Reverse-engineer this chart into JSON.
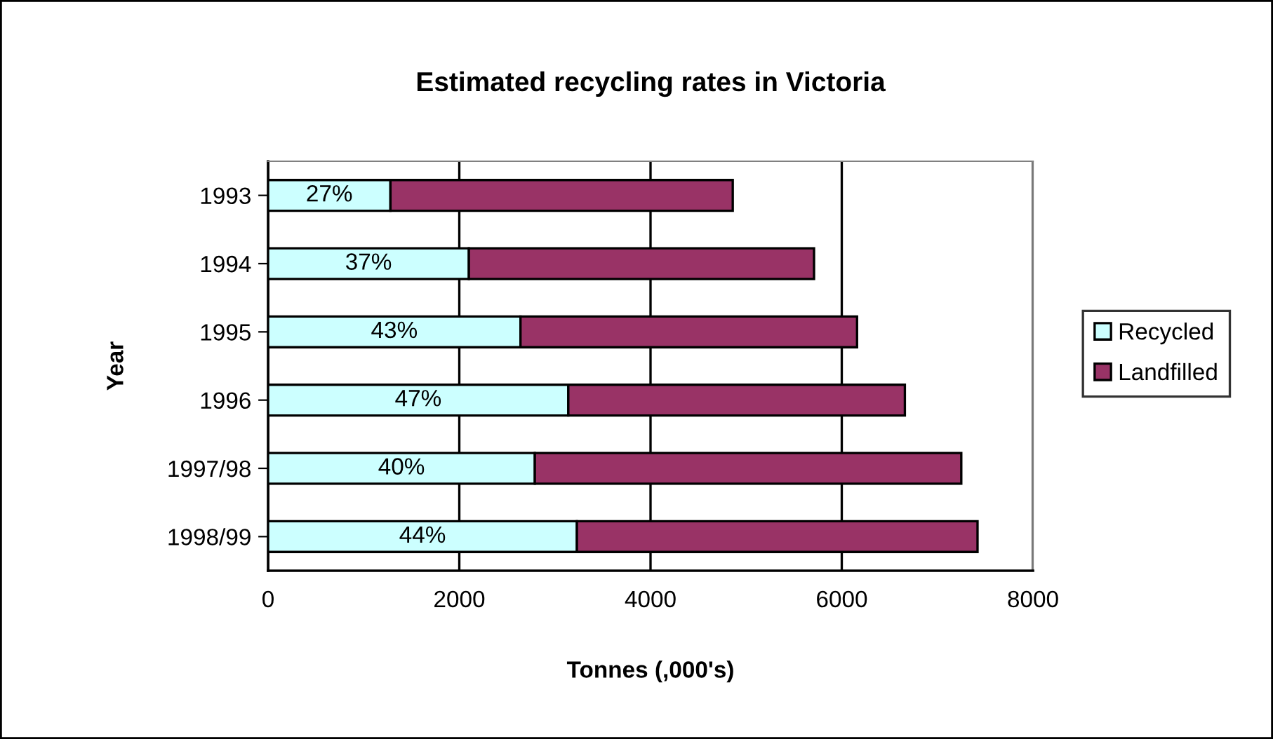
{
  "chart_data": {
    "type": "bar",
    "orientation": "horizontal",
    "stacked": true,
    "title": "Estimated recycling rates in Victoria",
    "xlabel": "Tonnes (,000's)",
    "ylabel": "Year",
    "categories": [
      "1993",
      "1994",
      "1995",
      "1996",
      "1997/98",
      "1998/99"
    ],
    "series": [
      {
        "name": "Recycled",
        "color": "#ccffff",
        "values": [
          1280,
          2100,
          2640,
          3140,
          2790,
          3230
        ]
      },
      {
        "name": "Landfilled",
        "color": "#993366",
        "values": [
          3580,
          3610,
          3520,
          3520,
          4460,
          4190
        ]
      }
    ],
    "annotations": [
      "27%",
      "37%",
      "43%",
      "47%",
      "40%",
      "44%"
    ],
    "xlim": [
      0,
      8000
    ],
    "xticks": [
      0,
      2000,
      4000,
      6000,
      8000
    ],
    "grid": "x",
    "legend": "right"
  }
}
